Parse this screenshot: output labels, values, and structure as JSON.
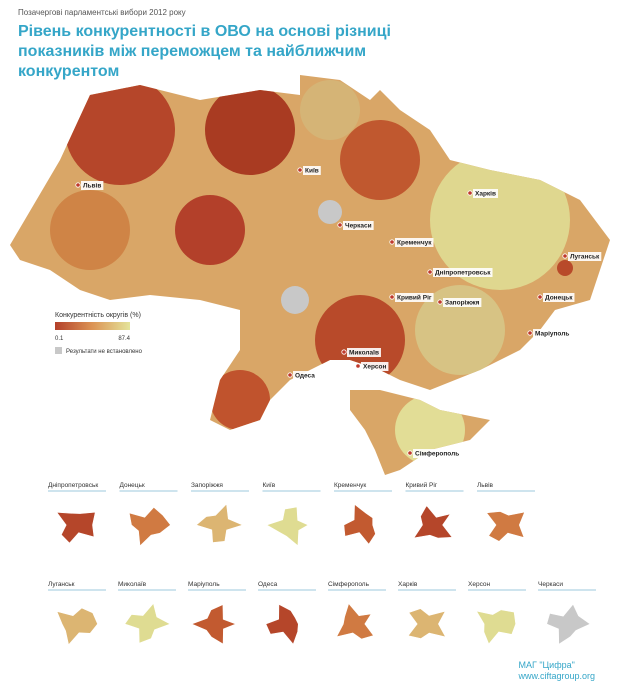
{
  "header": {
    "supertitle": "Позачергові парламентські вибори 2012 року",
    "title": "Рівень конкурентності в ОВО на основі різниці показників між переможцем та найближчим конкурентом"
  },
  "legend": {
    "title": "Конкурентність округів (%)",
    "min": "0.1",
    "max": "87.4",
    "no_data": "Результати не встановлено"
  },
  "cities": [
    "Київ",
    "Львів",
    "Харків",
    "Черкаси",
    "Кременчук",
    "Дніпропетровськ",
    "Луганськ",
    "Донецьк",
    "Кривий Ріг",
    "Запоріжжя",
    "Маріуполь",
    "Миколаїв",
    "Херсон",
    "Одеса",
    "Сімферополь"
  ],
  "insets": [
    "Дніпропетровськ",
    "Донецьк",
    "Запоріжжя",
    "Київ",
    "Кременчук",
    "Кривий Ріг",
    "Львів",
    "Луганськ",
    "Миколаїв",
    "Маріуполь",
    "Одеса",
    "Сімферополь",
    "Харків",
    "Херсон",
    "Черкаси"
  ],
  "footer": {
    "org": "МАГ \"Цифра\"",
    "url": "www.ciftagroup.org"
  }
}
